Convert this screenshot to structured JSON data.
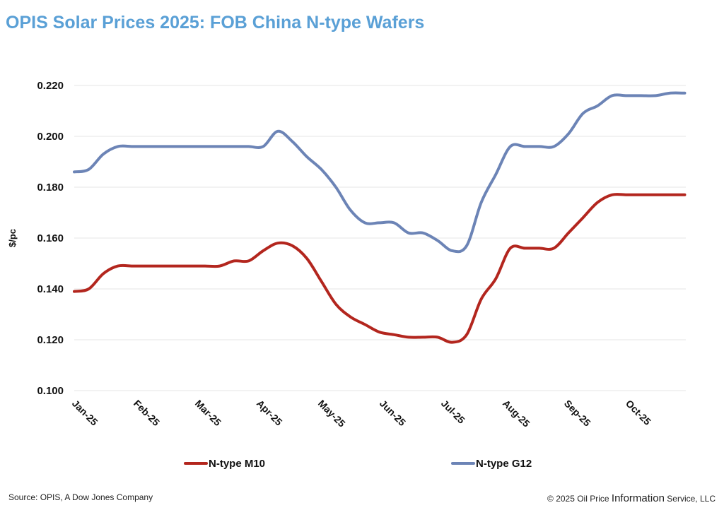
{
  "title": "OPIS Solar Prices 2025: FOB China N-type Wafers",
  "footer": {
    "source": "Source: OPIS, A Dow Jones Company",
    "copyright_pre": "© 2025 Oil Price",
    "copyright_big": "Information",
    "copyright_post": "Service, LLC"
  },
  "chart_data": {
    "type": "line",
    "title": "OPIS Solar Prices 2025: FOB China N-type Wafers",
    "ylabel": "$/pc",
    "xlabel": "",
    "ylim": [
      0.1,
      0.22
    ],
    "yticks": [
      "0.100",
      "0.120",
      "0.140",
      "0.160",
      "0.180",
      "0.200",
      "0.220"
    ],
    "xticks": [
      "Jan-25",
      "Feb-25",
      "Mar-25",
      "Apr-25",
      "May-25",
      "Jun-25",
      "Jul-25",
      "Aug-25",
      "Sep-25",
      "Oct-25"
    ],
    "grid": "horizontal",
    "legend": "bottom",
    "x": [
      "2025-01-01",
      "2025-01-08",
      "2025-01-15",
      "2025-01-22",
      "2025-01-29",
      "2025-02-05",
      "2025-02-12",
      "2025-02-19",
      "2025-02-26",
      "2025-03-05",
      "2025-03-12",
      "2025-03-19",
      "2025-03-26",
      "2025-04-02",
      "2025-04-09",
      "2025-04-16",
      "2025-04-23",
      "2025-04-30",
      "2025-05-07",
      "2025-05-14",
      "2025-05-21",
      "2025-05-28",
      "2025-06-04",
      "2025-06-11",
      "2025-06-18",
      "2025-06-25",
      "2025-07-02",
      "2025-07-09",
      "2025-07-16",
      "2025-07-23",
      "2025-07-30",
      "2025-08-06",
      "2025-08-13",
      "2025-08-20",
      "2025-08-27",
      "2025-09-03",
      "2025-09-10",
      "2025-09-17",
      "2025-09-24",
      "2025-10-01",
      "2025-10-08",
      "2025-10-15",
      "2025-10-22"
    ],
    "series": [
      {
        "name": "N-type M10",
        "color": "#b3261e",
        "values": [
          0.139,
          0.14,
          0.146,
          0.149,
          0.149,
          0.149,
          0.149,
          0.149,
          0.149,
          0.149,
          0.149,
          0.151,
          0.151,
          0.155,
          0.158,
          0.157,
          0.152,
          0.143,
          0.134,
          0.129,
          0.126,
          0.123,
          0.122,
          0.121,
          0.121,
          0.121,
          0.119,
          0.122,
          0.136,
          0.144,
          0.156,
          0.156,
          0.156,
          0.156,
          0.162,
          0.168,
          0.174,
          0.177,
          0.177,
          0.177,
          0.177,
          0.177,
          0.177
        ]
      },
      {
        "name": "N-type G12",
        "color": "#6c84b6",
        "values": [
          0.186,
          0.187,
          0.193,
          0.196,
          0.196,
          0.196,
          0.196,
          0.196,
          0.196,
          0.196,
          0.196,
          0.196,
          0.196,
          0.196,
          0.202,
          0.198,
          0.192,
          0.187,
          0.18,
          0.171,
          0.166,
          0.166,
          0.166,
          0.162,
          0.162,
          0.159,
          0.155,
          0.157,
          0.174,
          0.185,
          0.196,
          0.196,
          0.196,
          0.196,
          0.201,
          0.209,
          0.212,
          0.216,
          0.216,
          0.216,
          0.216,
          0.217,
          0.217
        ]
      }
    ]
  }
}
